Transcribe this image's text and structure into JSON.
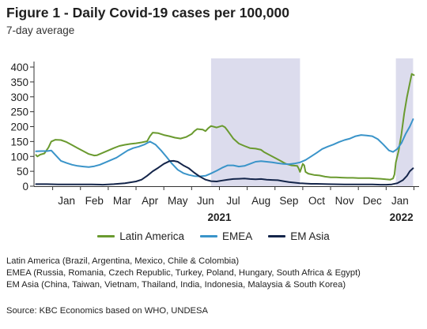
{
  "title": "Figure 1 - Daily Covid-19 cases per 100,000",
  "subtitle": "7-day average",
  "notes": [
    "Latin America (Brazil, Argentina, Mexico, Chile & Colombia)",
    "EMEA (Russia, Romania, Czech Republic, Turkey, Poland, Hungary, South Africa & Egypt)",
    "EM Asia (China, Taiwan, Vietnam, Thailand, India, Indonesia, Malaysia & South Korea)"
  ],
  "source": "Source: KBC Economics based on WHO, UNDESA",
  "chart_data": {
    "type": "line",
    "title": "Figure 1 - Daily Covid-19 cases per 100,000",
    "subtitle": "7-day average",
    "x_unit": "month index (0 = 1 Jan 2021)",
    "x_tick_labels": [
      {
        "label": "Jan",
        "x": 0.5
      },
      {
        "label": "Feb",
        "x": 1.5
      },
      {
        "label": "Mar",
        "x": 2.5
      },
      {
        "label": "Apr",
        "x": 3.5
      },
      {
        "label": "May",
        "x": 4.5
      },
      {
        "label": "Jun",
        "x": 5.5
      },
      {
        "label": "Jul",
        "x": 6.5
      },
      {
        "label": "Aug",
        "x": 7.5
      },
      {
        "label": "Sep",
        "x": 8.5
      },
      {
        "label": "Oct",
        "x": 9.5
      },
      {
        "label": "Nov",
        "x": 10.5
      },
      {
        "label": "Dec",
        "x": 11.5
      },
      {
        "label": "Jan",
        "x": 12.5
      }
    ],
    "year_labels": [
      {
        "label": "2021",
        "x": 6.0
      },
      {
        "label": "2022",
        "x": 12.55
      }
    ],
    "xlim": [
      -0.7,
      13.1
    ],
    "ylim": [
      0,
      400
    ],
    "y_ticks": [
      0,
      50,
      100,
      150,
      200,
      250,
      300,
      350,
      400
    ],
    "shaded_ranges": [
      [
        5.7,
        8.9
      ],
      [
        12.35,
        12.97
      ]
    ],
    "grid": false,
    "legend_position": "bottom",
    "series": [
      {
        "name": "Latin America",
        "color": "#6a9a2f",
        "points": [
          [
            -0.6,
            105
          ],
          [
            -0.55,
            100
          ],
          [
            -0.45,
            106
          ],
          [
            -0.3,
            110
          ],
          [
            -0.15,
            130
          ],
          [
            -0.05,
            150
          ],
          [
            0.1,
            156
          ],
          [
            0.3,
            155
          ],
          [
            0.5,
            148
          ],
          [
            0.7,
            138
          ],
          [
            0.9,
            128
          ],
          [
            1.1,
            118
          ],
          [
            1.3,
            108
          ],
          [
            1.5,
            103
          ],
          [
            1.6,
            104
          ],
          [
            1.8,
            112
          ],
          [
            2.0,
            120
          ],
          [
            2.2,
            128
          ],
          [
            2.4,
            135
          ],
          [
            2.6,
            139
          ],
          [
            2.8,
            142
          ],
          [
            3.0,
            144
          ],
          [
            3.2,
            147
          ],
          [
            3.4,
            151
          ],
          [
            3.5,
            168
          ],
          [
            3.6,
            180
          ],
          [
            3.8,
            178
          ],
          [
            4.0,
            172
          ],
          [
            4.2,
            168
          ],
          [
            4.4,
            163
          ],
          [
            4.6,
            160
          ],
          [
            4.8,
            165
          ],
          [
            5.0,
            175
          ],
          [
            5.1,
            185
          ],
          [
            5.2,
            192
          ],
          [
            5.4,
            190
          ],
          [
            5.5,
            185
          ],
          [
            5.6,
            195
          ],
          [
            5.7,
            202
          ],
          [
            5.9,
            197
          ],
          [
            6.1,
            203
          ],
          [
            6.2,
            198
          ],
          [
            6.3,
            186
          ],
          [
            6.5,
            160
          ],
          [
            6.7,
            143
          ],
          [
            6.9,
            135
          ],
          [
            7.1,
            128
          ],
          [
            7.3,
            126
          ],
          [
            7.5,
            122
          ],
          [
            7.6,
            115
          ],
          [
            7.8,
            105
          ],
          [
            8.0,
            95
          ],
          [
            8.2,
            85
          ],
          [
            8.4,
            75
          ],
          [
            8.6,
            70
          ],
          [
            8.8,
            68
          ],
          [
            8.85,
            60
          ],
          [
            8.9,
            48
          ],
          [
            9.0,
            75
          ],
          [
            9.05,
            70
          ],
          [
            9.1,
            48
          ],
          [
            9.2,
            42
          ],
          [
            9.4,
            38
          ],
          [
            9.6,
            36
          ],
          [
            9.8,
            32
          ],
          [
            10.0,
            30
          ],
          [
            10.2,
            30
          ],
          [
            10.4,
            29
          ],
          [
            10.6,
            28
          ],
          [
            10.8,
            28
          ],
          [
            11.0,
            27
          ],
          [
            11.2,
            27
          ],
          [
            11.4,
            27
          ],
          [
            11.6,
            26
          ],
          [
            11.8,
            25
          ],
          [
            12.0,
            23
          ],
          [
            12.15,
            22
          ],
          [
            12.25,
            26
          ],
          [
            12.3,
            40
          ],
          [
            12.35,
            80
          ],
          [
            12.45,
            120
          ],
          [
            12.55,
            175
          ],
          [
            12.65,
            245
          ],
          [
            12.75,
            300
          ],
          [
            12.85,
            345
          ],
          [
            12.92,
            377
          ],
          [
            13.0,
            373
          ]
        ]
      },
      {
        "name": "EMEA",
        "color": "#3a94c9",
        "points": [
          [
            -0.6,
            117
          ],
          [
            -0.4,
            118
          ],
          [
            -0.2,
            118
          ],
          [
            -0.05,
            120
          ],
          [
            0.1,
            105
          ],
          [
            0.3,
            85
          ],
          [
            0.5,
            78
          ],
          [
            0.7,
            72
          ],
          [
            0.9,
            68
          ],
          [
            1.1,
            66
          ],
          [
            1.3,
            64
          ],
          [
            1.5,
            67
          ],
          [
            1.7,
            72
          ],
          [
            1.9,
            80
          ],
          [
            2.1,
            88
          ],
          [
            2.3,
            96
          ],
          [
            2.5,
            108
          ],
          [
            2.7,
            120
          ],
          [
            2.9,
            128
          ],
          [
            3.1,
            133
          ],
          [
            3.3,
            140
          ],
          [
            3.5,
            150
          ],
          [
            3.7,
            140
          ],
          [
            3.9,
            120
          ],
          [
            4.1,
            98
          ],
          [
            4.3,
            75
          ],
          [
            4.5,
            55
          ],
          [
            4.7,
            44
          ],
          [
            4.9,
            38
          ],
          [
            5.1,
            34
          ],
          [
            5.3,
            33
          ],
          [
            5.5,
            35
          ],
          [
            5.7,
            43
          ],
          [
            5.9,
            52
          ],
          [
            6.1,
            62
          ],
          [
            6.3,
            70
          ],
          [
            6.5,
            70
          ],
          [
            6.7,
            66
          ],
          [
            6.9,
            68
          ],
          [
            7.1,
            75
          ],
          [
            7.3,
            82
          ],
          [
            7.5,
            84
          ],
          [
            7.7,
            82
          ],
          [
            7.9,
            80
          ],
          [
            8.1,
            77
          ],
          [
            8.3,
            75
          ],
          [
            8.5,
            74
          ],
          [
            8.7,
            76
          ],
          [
            8.9,
            80
          ],
          [
            9.1,
            88
          ],
          [
            9.3,
            100
          ],
          [
            9.5,
            112
          ],
          [
            9.7,
            125
          ],
          [
            9.9,
            133
          ],
          [
            10.1,
            140
          ],
          [
            10.3,
            148
          ],
          [
            10.5,
            155
          ],
          [
            10.7,
            160
          ],
          [
            10.9,
            168
          ],
          [
            11.1,
            172
          ],
          [
            11.3,
            170
          ],
          [
            11.5,
            168
          ],
          [
            11.7,
            158
          ],
          [
            11.9,
            140
          ],
          [
            12.1,
            120
          ],
          [
            12.25,
            115
          ],
          [
            12.4,
            125
          ],
          [
            12.55,
            145
          ],
          [
            12.7,
            175
          ],
          [
            12.85,
            200
          ],
          [
            12.97,
            225
          ]
        ]
      },
      {
        "name": "EM Asia",
        "color": "#14254a",
        "points": [
          [
            -0.6,
            7
          ],
          [
            -0.2,
            7
          ],
          [
            0.2,
            6
          ],
          [
            0.6,
            6
          ],
          [
            1.0,
            6
          ],
          [
            1.4,
            6
          ],
          [
            1.8,
            5
          ],
          [
            2.2,
            7
          ],
          [
            2.6,
            10
          ],
          [
            3.0,
            16
          ],
          [
            3.2,
            22
          ],
          [
            3.4,
            35
          ],
          [
            3.6,
            50
          ],
          [
            3.8,
            62
          ],
          [
            4.0,
            75
          ],
          [
            4.2,
            84
          ],
          [
            4.35,
            85
          ],
          [
            4.5,
            82
          ],
          [
            4.7,
            70
          ],
          [
            4.9,
            60
          ],
          [
            5.1,
            45
          ],
          [
            5.3,
            32
          ],
          [
            5.5,
            22
          ],
          [
            5.7,
            17
          ],
          [
            5.9,
            16
          ],
          [
            6.1,
            19
          ],
          [
            6.3,
            22
          ],
          [
            6.5,
            24
          ],
          [
            6.7,
            25
          ],
          [
            6.9,
            26
          ],
          [
            7.1,
            24
          ],
          [
            7.3,
            23
          ],
          [
            7.5,
            24
          ],
          [
            7.7,
            22
          ],
          [
            7.9,
            21
          ],
          [
            8.1,
            20
          ],
          [
            8.3,
            17
          ],
          [
            8.5,
            14
          ],
          [
            8.7,
            12
          ],
          [
            8.9,
            10
          ],
          [
            9.1,
            9
          ],
          [
            9.3,
            8
          ],
          [
            9.5,
            8
          ],
          [
            9.9,
            7
          ],
          [
            10.5,
            6
          ],
          [
            11.0,
            6
          ],
          [
            11.5,
            6
          ],
          [
            11.8,
            5
          ],
          [
            12.0,
            5
          ],
          [
            12.2,
            6
          ],
          [
            12.4,
            10
          ],
          [
            12.6,
            20
          ],
          [
            12.75,
            35
          ],
          [
            12.85,
            50
          ],
          [
            12.97,
            60
          ]
        ]
      }
    ]
  }
}
